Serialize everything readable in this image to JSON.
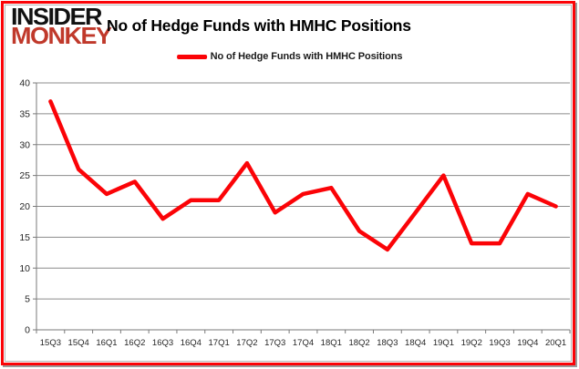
{
  "logo": {
    "line1": "INSIDER",
    "line2": "MONKEY"
  },
  "header": {
    "title": "No of Hedge Funds with HMHC Positions"
  },
  "legend": {
    "label": "No of Hedge Funds with HMHC Positions"
  },
  "colors": {
    "line_red": "#fb0307",
    "border_red": "#fb0307",
    "logo_black": "#111111",
    "logo_red": "#c0392b",
    "grid_gray": "#8c8c8c",
    "axis_gray": "#7a7a7a",
    "text_black": "#262626"
  },
  "chart_data": {
    "type": "line",
    "title": "No of Hedge Funds with HMHC Positions",
    "series_name": "No of Hedge Funds with HMHC Positions",
    "categories": [
      "15Q3",
      "15Q4",
      "16Q1",
      "16Q2",
      "16Q3",
      "16Q4",
      "17Q1",
      "17Q2",
      "17Q3",
      "17Q4",
      "18Q1",
      "18Q2",
      "18Q3",
      "18Q4",
      "19Q1",
      "19Q2",
      "19Q3",
      "19Q4",
      "20Q1"
    ],
    "values": [
      37,
      26,
      22,
      24,
      18,
      21,
      21,
      27,
      19,
      22,
      23,
      16,
      13,
      19,
      25,
      14,
      14,
      22,
      20
    ],
    "xlabel": "",
    "ylabel": "",
    "ylim": [
      0,
      40
    ],
    "yticks": [
      0,
      5,
      10,
      15,
      20,
      25,
      30,
      35,
      40
    ],
    "grid": true,
    "legend_position": "top-center",
    "line_color": "#fb0307"
  }
}
